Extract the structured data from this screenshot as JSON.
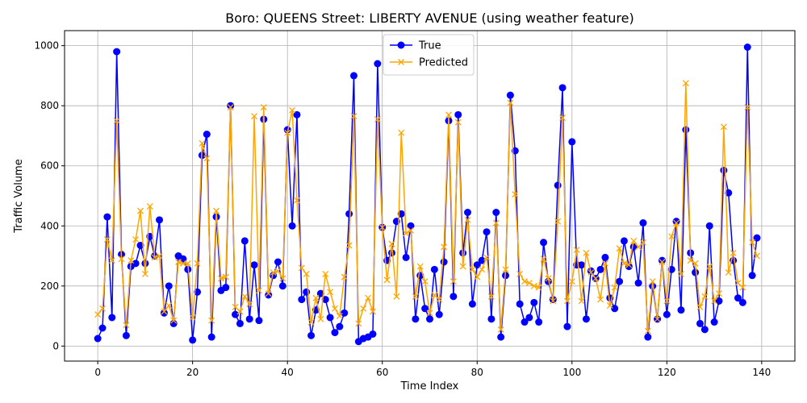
{
  "chart_data": {
    "type": "line",
    "title": "Boro: QUEENS Street: LIBERTY AVENUE (using weather feature)",
    "xlabel": "Time Index",
    "ylabel": "Traffic Volume",
    "xlim": [
      -7,
      147
    ],
    "ylim": [
      -50,
      1050
    ],
    "xticks": [
      0,
      20,
      40,
      60,
      80,
      100,
      120,
      140
    ],
    "yticks": [
      0,
      200,
      400,
      600,
      800,
      1000
    ],
    "grid": true,
    "legend_position": "top-center",
    "series": [
      {
        "name": "True",
        "color": "#0000ff",
        "marker": "circle",
        "values": [
          25,
          60,
          430,
          95,
          980,
          305,
          35,
          265,
          275,
          335,
          275,
          365,
          300,
          420,
          110,
          200,
          75,
          300,
          290,
          255,
          20,
          180,
          635,
          705,
          30,
          430,
          185,
          195,
          800,
          105,
          75,
          350,
          90,
          270,
          85,
          755,
          170,
          235,
          280,
          200,
          720,
          400,
          770,
          155,
          180,
          35,
          120,
          175,
          155,
          95,
          45,
          65,
          110,
          440,
          900,
          15,
          25,
          30,
          40,
          940,
          395,
          285,
          310,
          415,
          440,
          295,
          400,
          90,
          235,
          125,
          90,
          255,
          105,
          280,
          750,
          165,
          770,
          310,
          445,
          140,
          270,
          285,
          380,
          90,
          445,
          30,
          235,
          835,
          650,
          140,
          80,
          95,
          145,
          80,
          345,
          215,
          155,
          535,
          860,
          65,
          680,
          270,
          270,
          90,
          250,
          225,
          255,
          295,
          160,
          125,
          215,
          350,
          265,
          330,
          210,
          410,
          30,
          200,
          90,
          285,
          105,
          255,
          415,
          120,
          720,
          310,
          245,
          75,
          55,
          400,
          80,
          150,
          585,
          510,
          285,
          160,
          145,
          995,
          235,
          360
        ]
      },
      {
        "name": "Predicted",
        "color": "#ffa500",
        "marker": "x",
        "values": [
          105,
          125,
          355,
          285,
          750,
          290,
          70,
          285,
          355,
          450,
          240,
          465,
          295,
          300,
          115,
          135,
          85,
          280,
          275,
          275,
          95,
          275,
          675,
          625,
          85,
          450,
          225,
          230,
          795,
          130,
          115,
          165,
          140,
          765,
          185,
          795,
          175,
          245,
          250,
          225,
          710,
          785,
          485,
          260,
          240,
          80,
          160,
          90,
          240,
          180,
          125,
          100,
          230,
          335,
          765,
          75,
          125,
          160,
          115,
          755,
          395,
          220,
          340,
          165,
          710,
          375,
          385,
          165,
          265,
          215,
          110,
          170,
          155,
          330,
          770,
          215,
          745,
          265,
          420,
          255,
          230,
          255,
          295,
          165,
          410,
          55,
          255,
          810,
          505,
          240,
          215,
          210,
          200,
          195,
          290,
          225,
          150,
          415,
          760,
          150,
          215,
          320,
          150,
          310,
          245,
          225,
          155,
          275,
          135,
          195,
          325,
          275,
          270,
          350,
          330,
          345,
          50,
          215,
          90,
          280,
          150,
          365,
          410,
          240,
          875,
          285,
          275,
          130,
          165,
          265,
          150,
          175,
          730,
          245,
          310,
          210,
          195,
          795,
          345,
          300
        ]
      }
    ]
  }
}
